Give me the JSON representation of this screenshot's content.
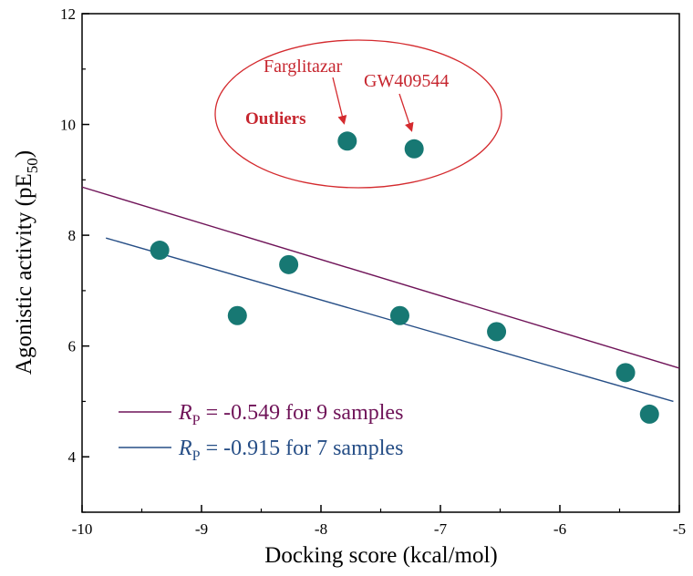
{
  "chart_data": {
    "type": "scatter",
    "xlabel": "Docking score (kcal/mol)",
    "ylabel": {
      "main": "Agonistic activity (pE",
      "sub": "50",
      "close": ")"
    },
    "xlim": [
      -10,
      -5
    ],
    "ylim": [
      3,
      12
    ],
    "xticks": [
      -10,
      -9,
      -8,
      -7,
      -6,
      -5
    ],
    "yticks": [
      4,
      6,
      8,
      10,
      12
    ],
    "xtick_labels": [
      "-10",
      "-9",
      "-8",
      "-7",
      "-6",
      "-5"
    ],
    "ytick_labels": [
      "4",
      "6",
      "8",
      "10",
      "12"
    ],
    "points": [
      {
        "x": -9.35,
        "y": 7.73
      },
      {
        "x": -8.7,
        "y": 6.55
      },
      {
        "x": -8.27,
        "y": 7.47
      },
      {
        "x": -7.78,
        "y": 9.7
      },
      {
        "x": -7.22,
        "y": 9.56
      },
      {
        "x": -7.34,
        "y": 6.55
      },
      {
        "x": -6.53,
        "y": 6.26
      },
      {
        "x": -5.45,
        "y": 5.52
      },
      {
        "x": -5.25,
        "y": 4.77
      }
    ],
    "point_color": "#177873",
    "fit_lines": [
      {
        "label_r": "R",
        "label_sub": "P",
        "label_rest": " = -0.549 for 9 samples",
        "color": "#6f1358",
        "x1": -10,
        "y1": 8.87,
        "x2": -5,
        "y2": 5.6
      },
      {
        "label_r": "R",
        "label_sub": "P",
        "label_rest": " = -0.915 for 7 samples",
        "color": "#264e86",
        "x1": -9.8,
        "y1": 7.95,
        "x2": -5.05,
        "y2": 5.0
      }
    ],
    "outliers": {
      "title": "Outliers",
      "labels": [
        {
          "text": "Farglitazar",
          "target": {
            "x": -7.78,
            "y": 9.7
          }
        },
        {
          "text": "GW409544",
          "target": {
            "x": -7.22,
            "y": 9.56
          }
        }
      ],
      "color": "#d42a2e"
    },
    "grid": false,
    "legend_position": "bottom-left"
  }
}
